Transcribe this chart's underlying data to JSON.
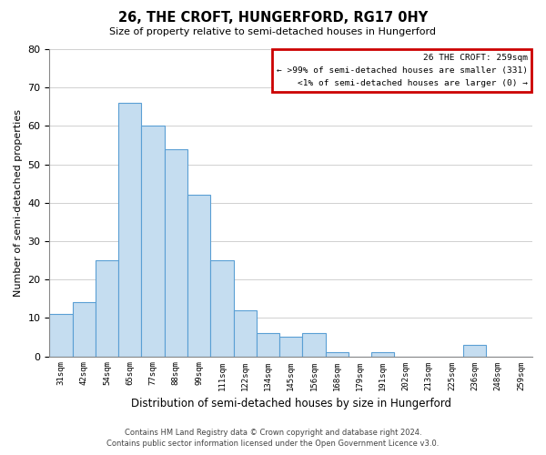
{
  "title": "26, THE CROFT, HUNGERFORD, RG17 0HY",
  "subtitle": "Size of property relative to semi-detached houses in Hungerford",
  "xlabel": "Distribution of semi-detached houses by size in Hungerford",
  "ylabel": "Number of semi-detached properties",
  "bar_labels": [
    "31sqm",
    "42sqm",
    "54sqm",
    "65sqm",
    "77sqm",
    "88sqm",
    "99sqm",
    "111sqm",
    "122sqm",
    "134sqm",
    "145sqm",
    "156sqm",
    "168sqm",
    "179sqm",
    "191sqm",
    "202sqm",
    "213sqm",
    "225sqm",
    "236sqm",
    "248sqm",
    "259sqm"
  ],
  "bar_values": [
    11,
    14,
    25,
    66,
    60,
    54,
    42,
    25,
    12,
    6,
    5,
    6,
    1,
    0,
    1,
    0,
    0,
    0,
    3,
    0,
    0
  ],
  "bar_color": "#c5ddf0",
  "bar_edge_color": "#5a9fd4",
  "ylim": [
    0,
    80
  ],
  "yticks": [
    0,
    10,
    20,
    30,
    40,
    50,
    60,
    70,
    80
  ],
  "legend_title": "26 THE CROFT: 259sqm",
  "legend_line1": "← >99% of semi-detached houses are smaller (331)",
  "legend_line2": "<1% of semi-detached houses are larger (0) →",
  "legend_box_color": "#ffffff",
  "legend_box_edge_color": "#cc0000",
  "footer_line1": "Contains HM Land Registry data © Crown copyright and database right 2024.",
  "footer_line2": "Contains public sector information licensed under the Open Government Licence v3.0.",
  "background_color": "#ffffff",
  "grid_color": "#d0d0d0"
}
